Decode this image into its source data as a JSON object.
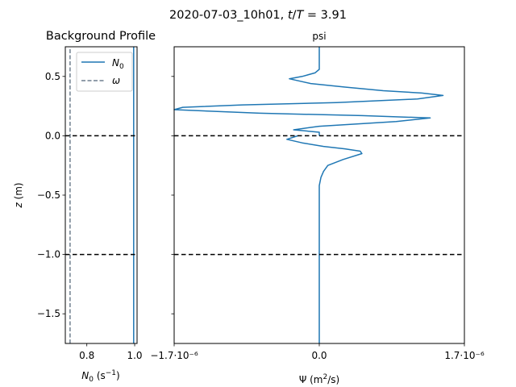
{
  "figure": {
    "suptitle": "2020-07-03_10h01, t/T = 3.91"
  },
  "chart_data": [
    {
      "type": "line",
      "title": "Background Profile",
      "xlabel": "N₀ (s⁻¹)",
      "ylabel": "z (m)",
      "xlim": [
        0.71,
        1.01
      ],
      "ylim": [
        -1.75,
        0.75
      ],
      "x_ticks": [
        0.8,
        1.0
      ],
      "x_tick_labels": [
        "0.8",
        "1.0"
      ],
      "y_ticks": [
        0.5,
        0.0,
        -0.5,
        -1.0,
        -1.5
      ],
      "y_tick_labels": [
        "0.5",
        "0.0",
        "−0.5",
        "−1.0",
        "−1.5"
      ],
      "grid": false,
      "legend": {
        "placement": "top-right",
        "entries": [
          "N₀",
          "ω"
        ]
      },
      "series": [
        {
          "name": "N₀",
          "style": "solid",
          "color": "#1f77b4",
          "x": [
            0.996,
            0.996
          ],
          "z": [
            -1.75,
            0.75
          ]
        },
        {
          "name": "ω",
          "style": "dashed",
          "color": "#6f7f8f",
          "x": [
            0.73,
            0.73
          ],
          "z": [
            -1.75,
            0.75
          ]
        }
      ],
      "hlines": [
        {
          "z": 0.0,
          "style": "dashed",
          "color": "#000000"
        },
        {
          "z": -1.0,
          "style": "dashed",
          "color": "#000000"
        }
      ]
    },
    {
      "type": "line",
      "title": "psi",
      "xlabel": "Ψ (m²/s)",
      "ylabel": "",
      "xlim": [
        -1.7e-06,
        1.7e-06
      ],
      "ylim": [
        -1.75,
        0.75
      ],
      "x_ticks": [
        -1.7e-06,
        0.0,
        1.7e-06
      ],
      "x_tick_labels": [
        "−1.7·10⁻⁶",
        "0.0",
        "1.7·10⁻⁶"
      ],
      "y_ticks": [
        0.5,
        0.0,
        -0.5,
        -1.0,
        -1.5
      ],
      "y_tick_labels": [
        "",
        "",
        "",
        "",
        ""
      ],
      "grid": false,
      "series": [
        {
          "name": "",
          "color": "#1f77b4",
          "x": [
            0.0,
            0.0,
            0.0,
            0.0,
            -5e-08,
            -2e-07,
            -3.5e-07,
            -1e-07,
            3e-07,
            7.5e-07,
            1.2e-06,
            1.45e-06,
            1.15e-06,
            2e-07,
            -9e-07,
            -1.6e-06,
            -1.7e-06,
            -7e-07,
            5e-07,
            1.3e-06,
            9e-07,
            0.0,
            -3e-07,
            0.0,
            0.0,
            0.0
          ],
          "z": [
            0.75,
            0.68,
            0.62,
            0.56,
            0.53,
            0.5,
            0.48,
            0.44,
            0.41,
            0.38,
            0.36,
            0.34,
            0.31,
            0.28,
            0.26,
            0.24,
            0.22,
            0.19,
            0.17,
            0.15,
            0.12,
            0.08,
            0.05,
            0.03,
            0.0,
            0.0
          ]
        },
        {
          "name": "",
          "color": "#1f77b4",
          "x": [
            -2.5e-07,
            -3.8e-07,
            -2e-07,
            5e-08,
            3e-07,
            4.8e-07,
            5e-07,
            2.8e-07,
            1e-07,
            5e-08,
            2e-08,
            0.0,
            0.0
          ],
          "z": [
            0.0,
            -0.03,
            -0.06,
            -0.09,
            -0.11,
            -0.13,
            -0.15,
            -0.2,
            -0.25,
            -0.3,
            -0.35,
            -0.42,
            -1.75
          ]
        }
      ],
      "hlines": [
        {
          "z": 0.0,
          "style": "dashed",
          "color": "#000000"
        },
        {
          "z": -1.0,
          "style": "dashed",
          "color": "#000000"
        }
      ]
    }
  ]
}
